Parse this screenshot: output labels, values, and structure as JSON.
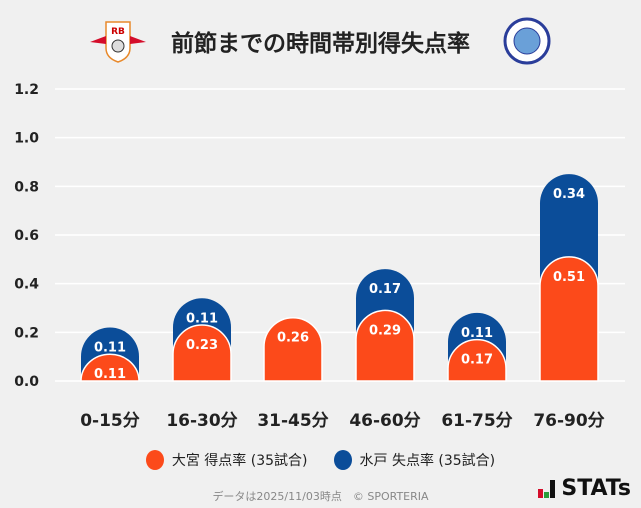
{
  "chart_data": {
    "type": "bar",
    "stacked": true,
    "title": "前節までの時間帯別得失点率",
    "categories": [
      "0-15分",
      "16-30分",
      "31-45分",
      "46-60分",
      "61-75分",
      "76-90分"
    ],
    "series": [
      {
        "name": "大宮 得点率 (35試合)",
        "color": "#fc4a1a",
        "values": [
          0.11,
          0.23,
          0.26,
          0.29,
          0.17,
          0.51
        ]
      },
      {
        "name": "水戸 失点率 (35試合)",
        "color": "#0b4d99",
        "values": [
          0.11,
          0.11,
          0,
          0.17,
          0.11,
          0.34
        ]
      }
    ],
    "yticks": [
      "0.0",
      "0.2",
      "0.4",
      "0.6",
      "0.8",
      "1.0",
      "1.2"
    ],
    "ylim": [
      0,
      1.2
    ],
    "grid": true,
    "legend": "bottom"
  },
  "teams": {
    "home_logo": "RB",
    "away_logo": "MITO HOLLY HOCK"
  },
  "footer": {
    "note": "データは2025/11/03時点　© SPORTERIA",
    "brand": "STATs"
  }
}
